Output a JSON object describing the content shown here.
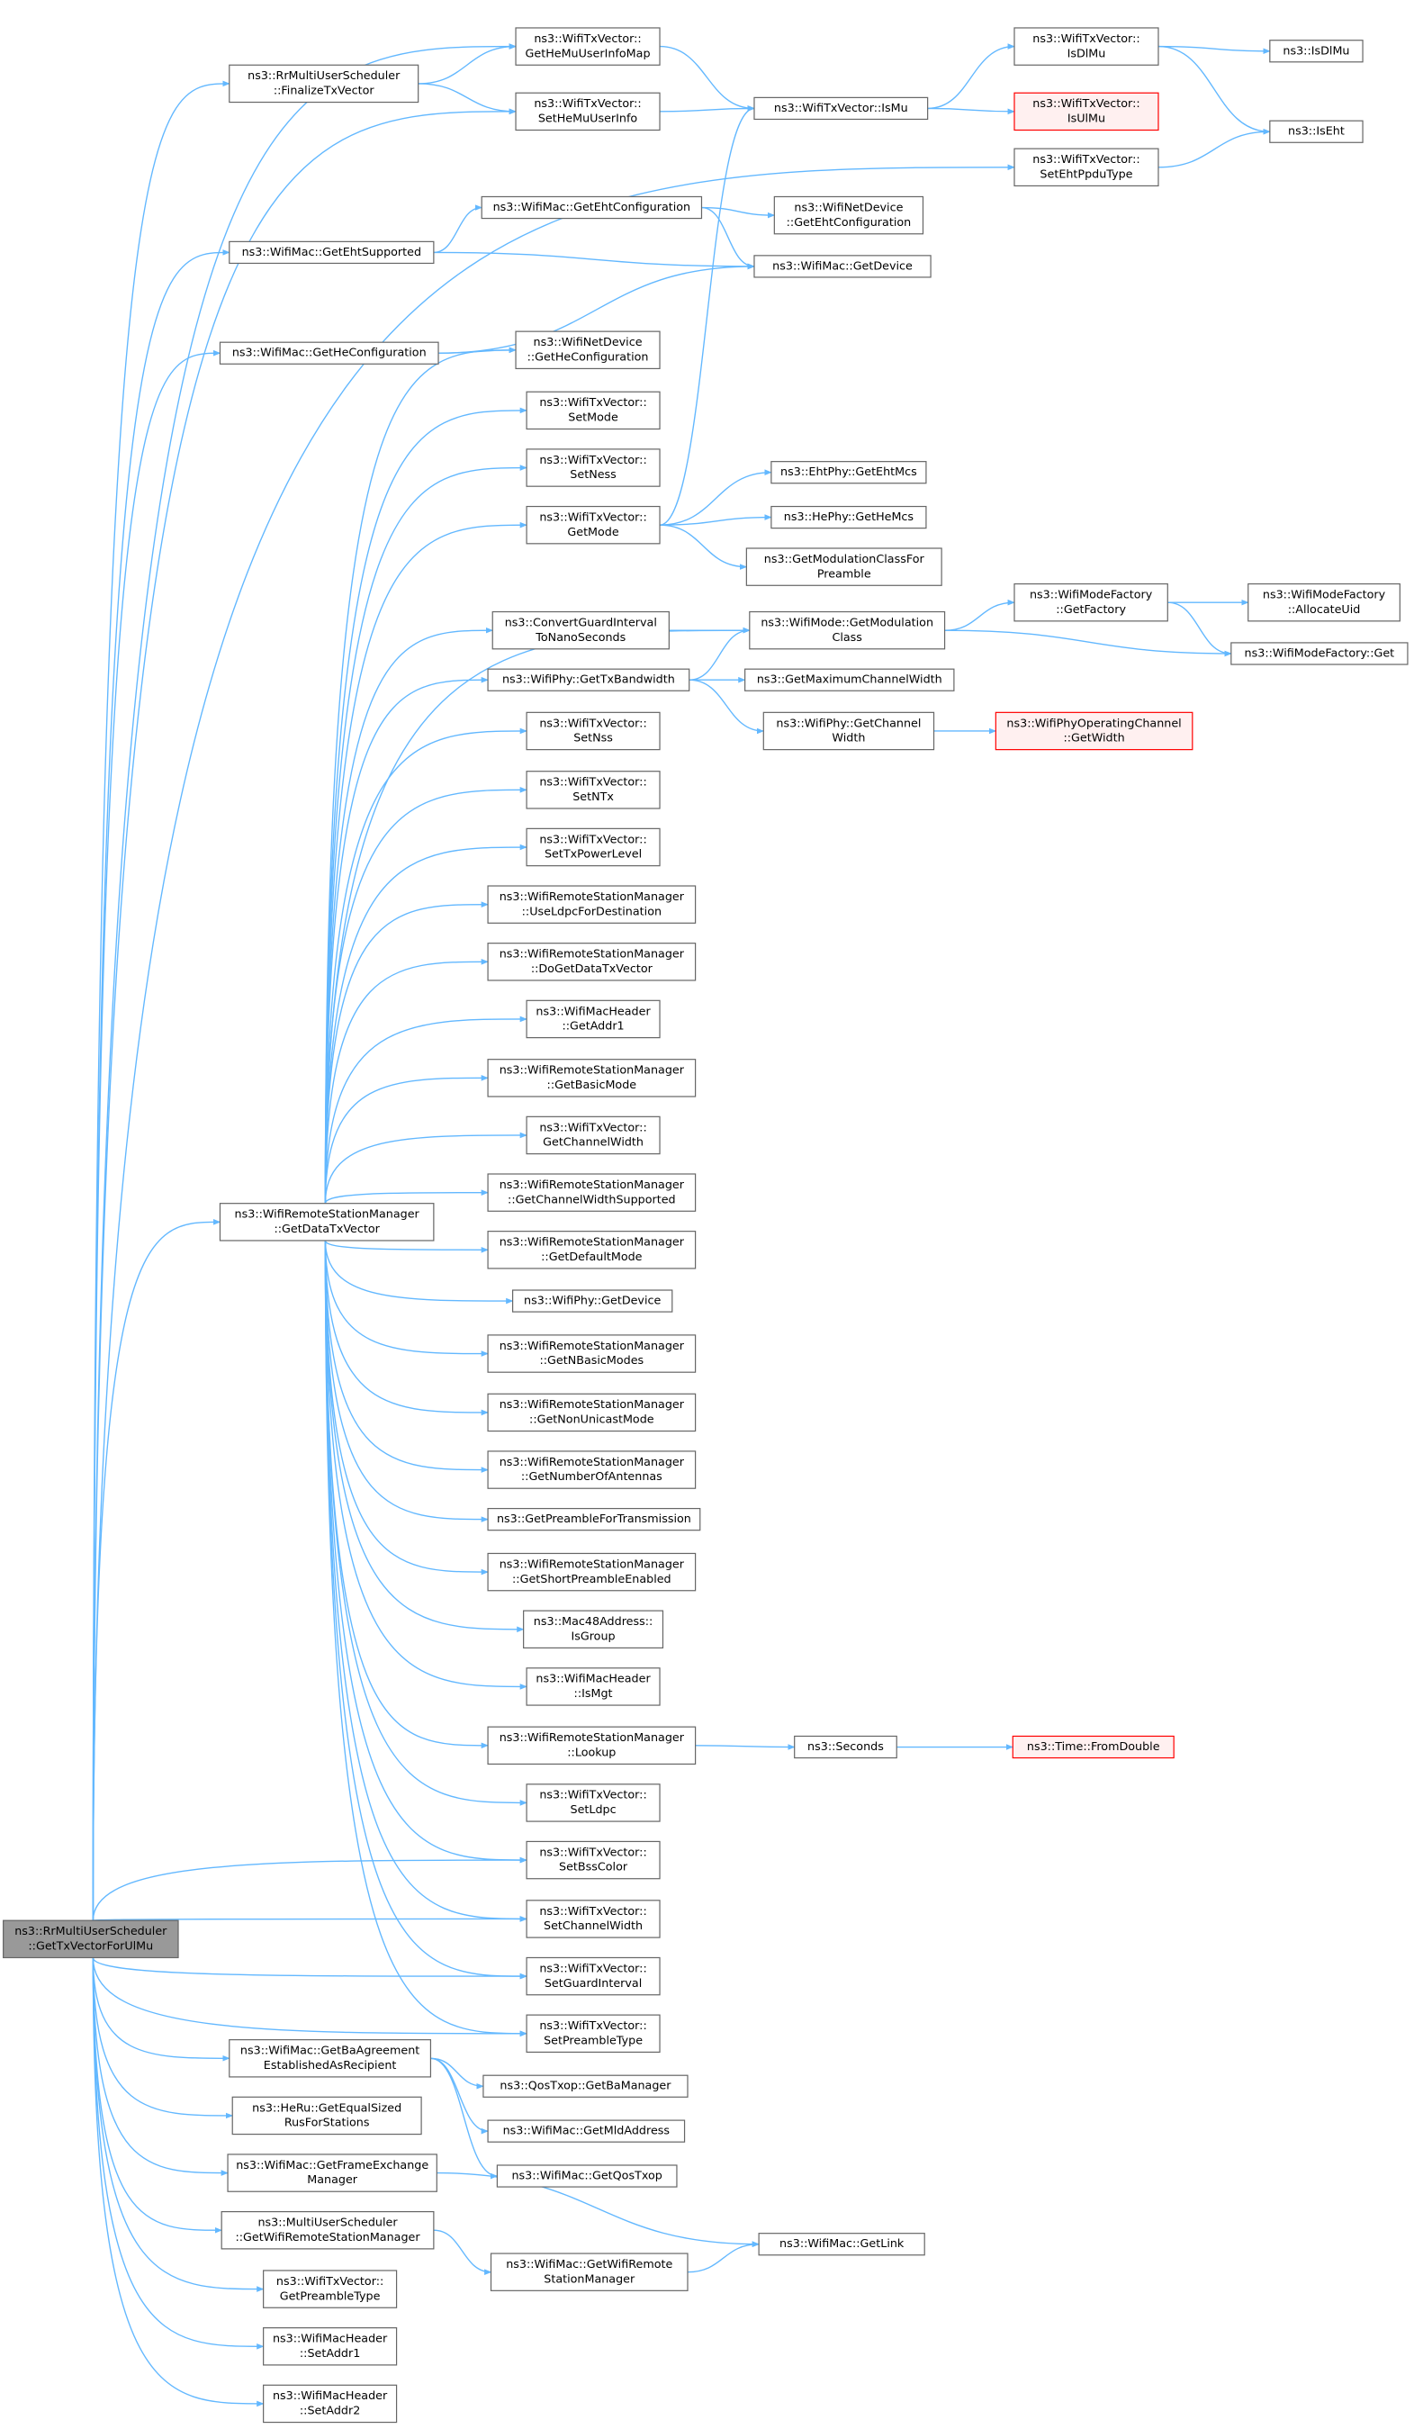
{
  "nodes": [
    {
      "label": [
        "ns3::RrMultiUserScheduler",
        "::GetTxVectorForUlMu"
      ]
    },
    {
      "label": [
        "ns3::RrMultiUserScheduler",
        "::FinalizeTxVector"
      ]
    },
    {
      "label": [
        "ns3::WifiTxVector::",
        "GetHeMuUserInfoMap"
      ]
    },
    {
      "label": [
        "ns3::WifiTxVector::",
        "SetHeMuUserInfo"
      ]
    },
    {
      "label": [
        "ns3::WifiTxVector::IsMu"
      ]
    },
    {
      "label": [
        "ns3::WifiTxVector::",
        "IsDlMu"
      ]
    },
    {
      "label": [
        "ns3::WifiTxVector::",
        "IsUlMu"
      ]
    },
    {
      "label": [
        "ns3::IsDlMu"
      ]
    },
    {
      "label": [
        "ns3::IsEht"
      ]
    },
    {
      "label": [
        "ns3::WifiTxVector::",
        "SetEhtPpduType"
      ]
    },
    {
      "label": [
        "ns3::WifiMac::GetEhtSupported"
      ]
    },
    {
      "label": [
        "ns3::WifiMac::GetEhtConfiguration"
      ]
    },
    {
      "label": [
        "ns3::WifiNetDevice",
        "::GetEhtConfiguration"
      ]
    },
    {
      "label": [
        "ns3::WifiMac::GetDevice"
      ]
    },
    {
      "label": [
        "ns3::WifiMac::GetHeConfiguration"
      ]
    },
    {
      "label": [
        "ns3::WifiNetDevice",
        "::GetHeConfiguration"
      ]
    },
    {
      "label": [
        "ns3::WifiTxVector::",
        "SetMode"
      ]
    },
    {
      "label": [
        "ns3::WifiTxVector::",
        "SetNess"
      ]
    },
    {
      "label": [
        "ns3::WifiTxVector::",
        "GetMode"
      ]
    },
    {
      "label": [
        "ns3::EhtPhy::GetEhtMcs"
      ]
    },
    {
      "label": [
        "ns3::HePhy::GetHeMcs"
      ]
    },
    {
      "label": [
        "ns3::GetModulationClassFor",
        "Preamble"
      ]
    },
    {
      "label": [
        "ns3::ConvertGuardInterval",
        "ToNanoSeconds"
      ]
    },
    {
      "label": [
        "ns3::WifiMode::GetModulation",
        "Class"
      ]
    },
    {
      "label": [
        "ns3::WifiModeFactory",
        "::GetFactory"
      ]
    },
    {
      "label": [
        "ns3::WifiModeFactory",
        "::AllocateUid"
      ]
    },
    {
      "label": [
        "ns3::WifiModeFactory::Get"
      ]
    },
    {
      "label": [
        "ns3::WifiPhy::GetTxBandwidth"
      ]
    },
    {
      "label": [
        "ns3::GetMaximumChannelWidth"
      ]
    },
    {
      "label": [
        "ns3::WifiPhy::GetChannel",
        "Width"
      ]
    },
    {
      "label": [
        "ns3::WifiPhyOperatingChannel",
        "::GetWidth"
      ]
    },
    {
      "label": [
        "ns3::WifiTxVector::",
        "SetNss"
      ]
    },
    {
      "label": [
        "ns3::WifiTxVector::",
        "SetNTx"
      ]
    },
    {
      "label": [
        "ns3::WifiTxVector::",
        "SetTxPowerLevel"
      ]
    },
    {
      "label": [
        "ns3::WifiRemoteStationManager",
        "::UseLdpcForDestination"
      ]
    },
    {
      "label": [
        "ns3::WifiRemoteStationManager",
        "::DoGetDataTxVector"
      ]
    },
    {
      "label": [
        "ns3::WifiMacHeader",
        "::GetAddr1"
      ]
    },
    {
      "label": [
        "ns3::WifiRemoteStationManager",
        "::GetBasicMode"
      ]
    },
    {
      "label": [
        "ns3::WifiTxVector::",
        "GetChannelWidth"
      ]
    },
    {
      "label": [
        "ns3::WifiRemoteStationManager",
        "::GetChannelWidthSupported"
      ]
    },
    {
      "label": [
        "ns3::WifiRemoteStationManager",
        "::GetDefaultMode"
      ]
    },
    {
      "label": [
        "ns3::WifiPhy::GetDevice"
      ]
    },
    {
      "label": [
        "ns3::WifiRemoteStationManager",
        "::GetNBasicModes"
      ]
    },
    {
      "label": [
        "ns3::WifiRemoteStationManager",
        "::GetNonUnicastMode"
      ]
    },
    {
      "label": [
        "ns3::WifiRemoteStationManager",
        "::GetNumberOfAntennas"
      ]
    },
    {
      "label": [
        "ns3::GetPreambleForTransmission"
      ]
    },
    {
      "label": [
        "ns3::WifiRemoteStationManager",
        "::GetShortPreambleEnabled"
      ]
    },
    {
      "label": [
        "ns3::Mac48Address::",
        "IsGroup"
      ]
    },
    {
      "label": [
        "ns3::WifiMacHeader",
        "::IsMgt"
      ]
    },
    {
      "label": [
        "ns3::WifiRemoteStationManager",
        "::Lookup"
      ]
    },
    {
      "label": [
        "ns3::Seconds"
      ]
    },
    {
      "label": [
        "ns3::Time::FromDouble"
      ]
    },
    {
      "label": [
        "ns3::WifiTxVector::",
        "SetLdpc"
      ]
    },
    {
      "label": [
        "ns3::WifiTxVector::",
        "SetBssColor"
      ]
    },
    {
      "label": [
        "ns3::WifiTxVector::",
        "SetChannelWidth"
      ]
    },
    {
      "label": [
        "ns3::WifiTxVector::",
        "SetGuardInterval"
      ]
    },
    {
      "label": [
        "ns3::WifiTxVector::",
        "SetPreambleType"
      ]
    },
    {
      "label": [
        "ns3::WifiRemoteStationManager",
        "::GetDataTxVector"
      ]
    },
    {
      "label": [
        "ns3::WifiMac::GetBaAgreement",
        "EstablishedAsRecipient"
      ]
    },
    {
      "label": [
        "ns3::QosTxop::GetBaManager"
      ]
    },
    {
      "label": [
        "ns3::WifiMac::GetMldAddress"
      ]
    },
    {
      "label": [
        "ns3::WifiMac::GetQosTxop"
      ]
    },
    {
      "label": [
        "ns3::HeRu::GetEqualSized",
        "RusForStations"
      ]
    },
    {
      "label": [
        "ns3::WifiMac::GetFrameExchange",
        "Manager"
      ]
    },
    {
      "label": [
        "ns3::MultiUserScheduler",
        "::GetWifiRemoteStationManager"
      ]
    },
    {
      "label": [
        "ns3::WifiMac::GetLink"
      ]
    },
    {
      "label": [
        "ns3::WifiMac::GetWifiRemote",
        "StationManager"
      ]
    },
    {
      "label": [
        "ns3::WifiTxVector::",
        "GetPreambleType"
      ]
    },
    {
      "label": [
        "ns3::WifiMacHeader",
        "::SetAddr1"
      ]
    },
    {
      "label": [
        "ns3::WifiMacHeader",
        "::SetAddr2"
      ]
    }
  ]
}
